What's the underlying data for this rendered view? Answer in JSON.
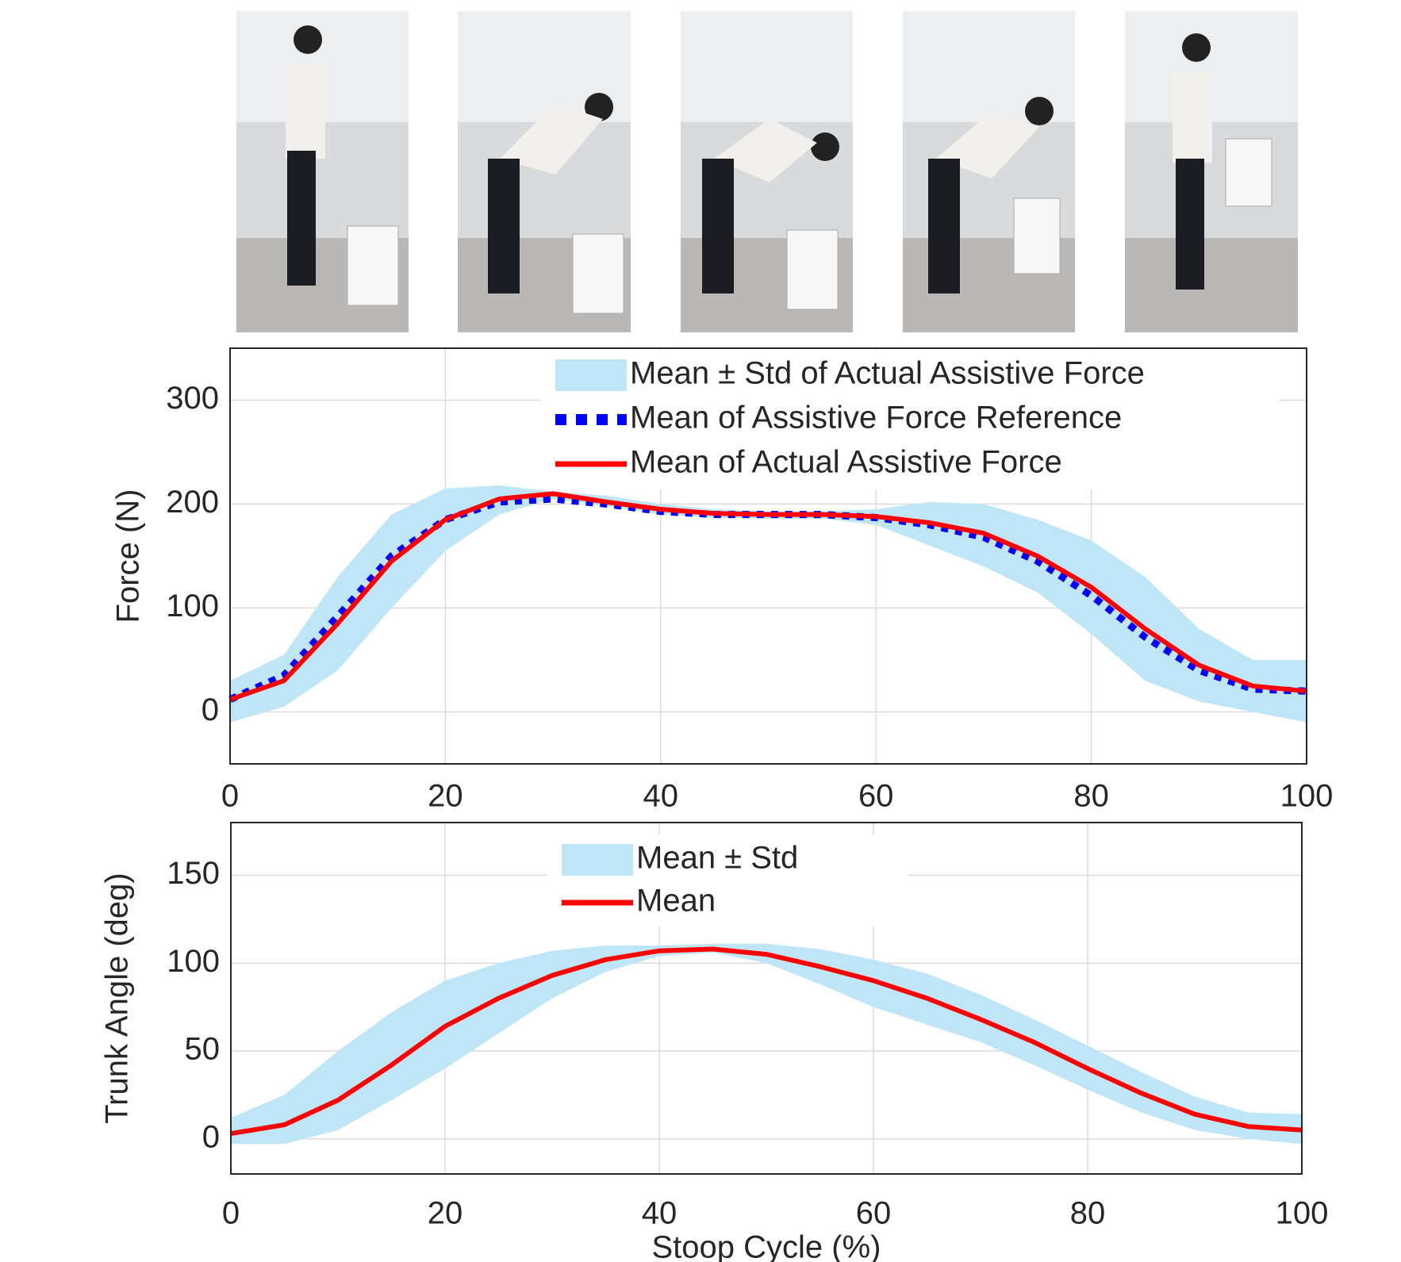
{
  "chart_data": [
    {
      "type": "line",
      "ylabel": "Force (N)",
      "x": [
        0,
        5,
        10,
        15,
        20,
        25,
        30,
        35,
        40,
        45,
        50,
        55,
        60,
        65,
        70,
        75,
        80,
        85,
        90,
        95,
        100
      ],
      "xlim": [
        0,
        100
      ],
      "xticks": [
        0,
        20,
        40,
        60,
        80,
        100
      ],
      "ylim": [
        -50,
        350
      ],
      "yticks": [
        0,
        100,
        200,
        300
      ],
      "grid": true,
      "series": [
        {
          "name": "Mean ± Std of Actual Assistive Force",
          "type": "band",
          "color": "#bfe6f7",
          "upper": [
            30,
            55,
            130,
            190,
            215,
            218,
            212,
            208,
            200,
            195,
            193,
            193,
            195,
            202,
            200,
            185,
            165,
            130,
            80,
            50,
            50
          ],
          "lower": [
            -10,
            5,
            40,
            100,
            155,
            190,
            205,
            198,
            190,
            187,
            186,
            186,
            180,
            160,
            140,
            115,
            75,
            30,
            10,
            0,
            -10
          ]
        },
        {
          "name": "Mean of Assistive Force Reference",
          "style": "dotted",
          "color": "#0000ff",
          "values": [
            12,
            35,
            92,
            150,
            185,
            202,
            205,
            200,
            193,
            190,
            190,
            190,
            187,
            180,
            168,
            145,
            112,
            72,
            40,
            22,
            20
          ]
        },
        {
          "name": "Mean of Actual Assistive Force",
          "style": "solid",
          "color": "#ff0000",
          "values": [
            12,
            30,
            85,
            145,
            185,
            205,
            210,
            202,
            195,
            191,
            190,
            190,
            188,
            182,
            172,
            150,
            120,
            80,
            45,
            25,
            20
          ]
        }
      ]
    },
    {
      "type": "line",
      "ylabel": "Trunk Angle (deg)",
      "xlabel": "Stoop Cycle (%)",
      "x": [
        0,
        5,
        10,
        15,
        20,
        25,
        30,
        35,
        40,
        45,
        50,
        55,
        60,
        65,
        70,
        75,
        80,
        85,
        90,
        95,
        100
      ],
      "xlim": [
        0,
        100
      ],
      "xticks": [
        0,
        20,
        40,
        60,
        80,
        100
      ],
      "ylim": [
        -20,
        180
      ],
      "yticks": [
        0,
        50,
        100,
        150
      ],
      "grid": true,
      "series": [
        {
          "name": "Mean ± Std",
          "type": "band",
          "color": "#bfe6f7",
          "upper": [
            12,
            25,
            50,
            72,
            90,
            100,
            107,
            110,
            110,
            111,
            111,
            108,
            102,
            94,
            82,
            68,
            53,
            38,
            24,
            15,
            14
          ],
          "lower": [
            -3,
            -3,
            5,
            22,
            40,
            60,
            80,
            95,
            104,
            106,
            100,
            88,
            75,
            65,
            55,
            42,
            28,
            15,
            5,
            0,
            -3
          ]
        },
        {
          "name": "Mean",
          "style": "solid",
          "color": "#ff0000",
          "values": [
            3,
            8,
            22,
            42,
            64,
            80,
            93,
            102,
            107,
            108,
            105,
            98,
            90,
            80,
            68,
            55,
            40,
            26,
            14,
            7,
            5
          ]
        }
      ]
    }
  ]
}
